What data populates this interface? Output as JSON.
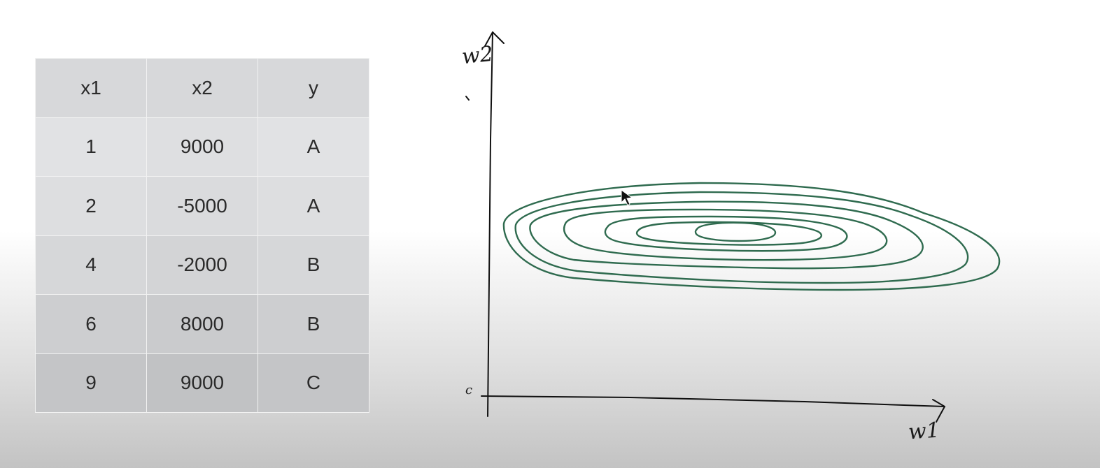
{
  "table": {
    "headers": [
      "x1",
      "x2",
      "y"
    ],
    "rows": [
      [
        "1",
        "9000",
        "A"
      ],
      [
        "2",
        "-5000",
        "A"
      ],
      [
        "4",
        "-2000",
        "B"
      ],
      [
        "6",
        "8000",
        "B"
      ],
      [
        "9",
        "9000",
        "C"
      ]
    ]
  },
  "diagram": {
    "y_axis_label": "w2",
    "x_axis_label": "w1",
    "origin_mark": "c",
    "contour_color": "#2f6b4f",
    "axis_color": "#111111",
    "contour_icon": "elliptical-contour-rings"
  }
}
